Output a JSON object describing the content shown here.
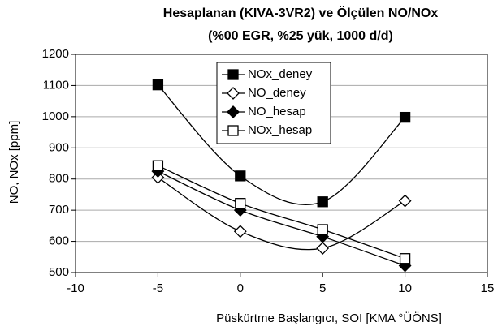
{
  "chart_data": {
    "type": "line",
    "title": [
      "Hesaplanan (KIVA-3VR2) ve Ölçülen NO/NOx",
      "(%00 EGR, %25 yük, 1000 d/d)"
    ],
    "x_label": "Püskürtme Başlangıcı, SOI   [KMA °ÜÖNS]",
    "y_label": "NO, NOx [ppm]",
    "x": [
      -5,
      0,
      5,
      10
    ],
    "series": [
      {
        "name": "NOx_deney",
        "color": "#000000",
        "marker": "square-filled",
        "values": [
          1102,
          810,
          727,
          998
        ]
      },
      {
        "name": "NO_deney",
        "color": "#000000",
        "marker": "diamond-open",
        "values": [
          805,
          632,
          578,
          730
        ]
      },
      {
        "name": "NO_hesap",
        "color": "#000000",
        "marker": "diamond-filled",
        "values": [
          825,
          700,
          615,
          522
        ]
      },
      {
        "name": "NOx_hesap",
        "color": "#000000",
        "marker": "square-open",
        "values": [
          843,
          722,
          638,
          545
        ]
      }
    ],
    "xlim": [
      -10,
      15
    ],
    "xticks": [
      -10,
      -5,
      0,
      5,
      10,
      15
    ],
    "ylim": [
      500,
      1200
    ],
    "yticks": [
      500,
      600,
      700,
      800,
      900,
      1000,
      1100,
      1200
    ],
    "grid": true,
    "legend": "top"
  }
}
